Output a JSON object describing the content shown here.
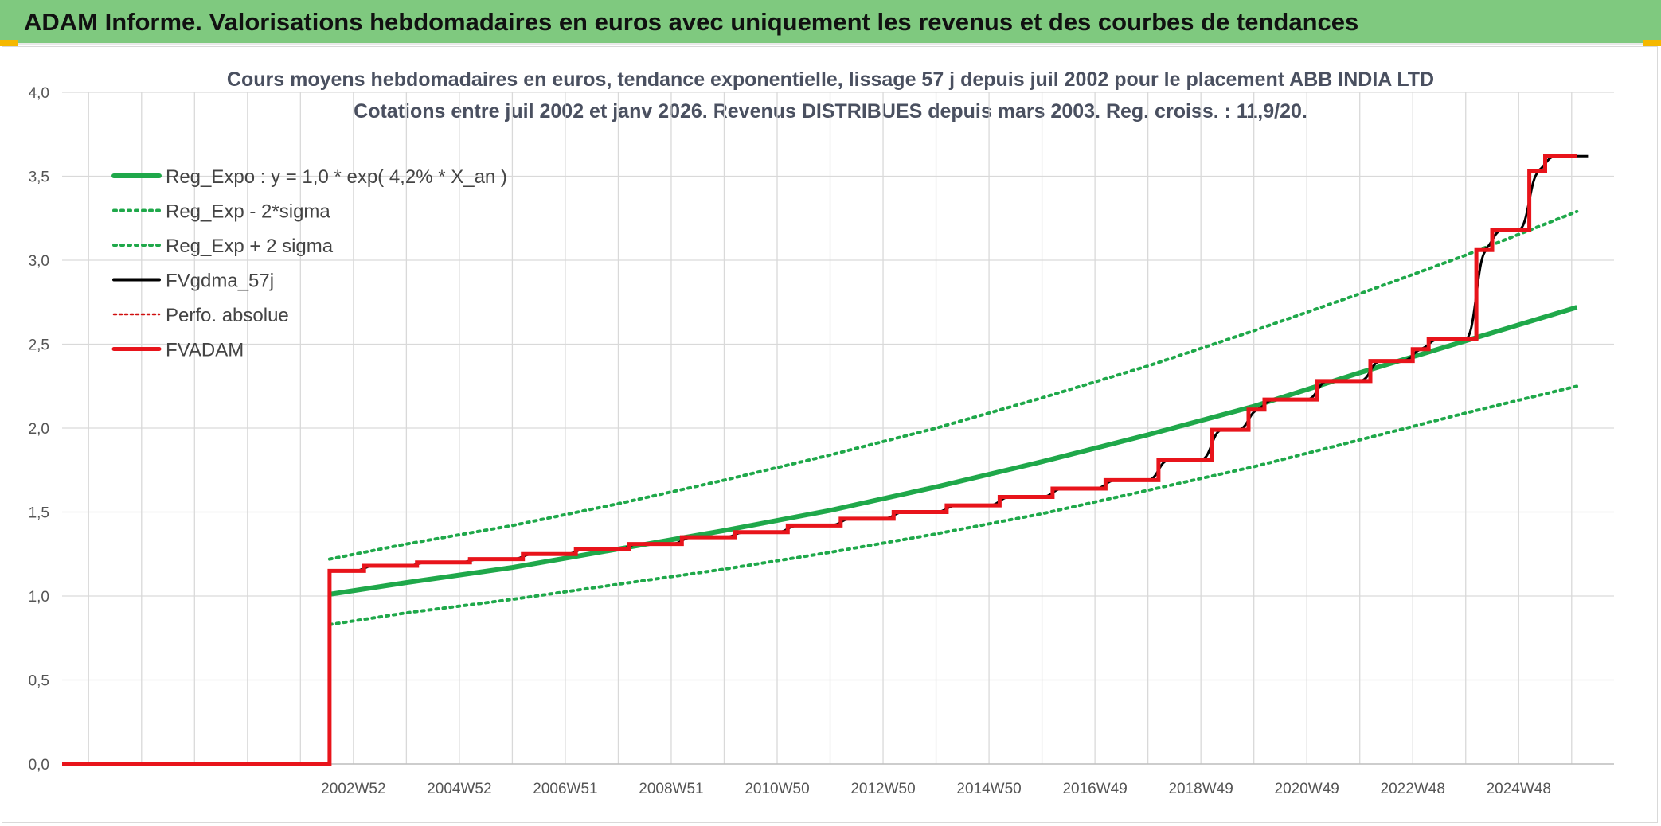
{
  "header": {
    "title": "ADAM Informe. Valorisations hebdomadaires en euros avec uniquement les revenus et des courbes de tendances"
  },
  "chart_data": {
    "type": "line",
    "title": "Cours moyens hebdomadaires en euros, tendance exponentielle, lissage 57 j depuis juil 2002 pour le placement ABB INDIA LTD",
    "subtitle": "Cotations entre juil 2002 et janv 2026. Revenus DISTRIBUES depuis mars 2003. Reg. croiss. : 11,9/20.",
    "xlabel": "",
    "ylabel": "",
    "x_ticks": [
      "2002W52",
      "2004W52",
      "2006W51",
      "2008W51",
      "2010W50",
      "2012W50",
      "2014W50",
      "2016W49",
      "2018W49",
      "2020W49",
      "2022W48",
      "2024W48"
    ],
    "x_tick_years": [
      2003.0,
      2005.0,
      2007.0,
      2009.0,
      2011.0,
      2013.0,
      2015.0,
      2017.0,
      2019.0,
      2021.0,
      2023.0,
      2025.0
    ],
    "x_range": [
      1997.5,
      2026.8
    ],
    "y_ticks": [
      "0,0",
      "0,5",
      "1,0",
      "1,5",
      "2,0",
      "2,5",
      "3,0",
      "3,5",
      "4,0"
    ],
    "ylim": [
      0,
      4.0
    ],
    "grid": true,
    "legend_position": "top-left",
    "colors": {
      "reg_expo": "#1fa84a",
      "sigma": "#1fa84a",
      "fvgdma": "#000000",
      "perfo": "#d01010",
      "fvadam": "#e8141b",
      "grid": "#d9d9d9"
    },
    "legend": [
      {
        "label": "Reg_Expo : y = 1,0 * exp( 4,2% *  X_an )",
        "key": "reg_expo"
      },
      {
        "label": "Reg_Exp - 2*sigma",
        "key": "reg_minus"
      },
      {
        "label": "Reg_Exp + 2 sigma",
        "key": "reg_plus"
      },
      {
        "label": "FVgdma_57j",
        "key": "fvgdma"
      },
      {
        "label": "Perfo. absolue",
        "key": "perfo"
      },
      {
        "label": "FVADAM",
        "key": "fvadam"
      }
    ],
    "series": [
      {
        "name": "Reg_Expo : y = 1,0 * exp( 4,2% *  X_an )",
        "key": "reg_expo",
        "x": [
          2002.55,
          2004,
          2006,
          2008,
          2010,
          2012,
          2014,
          2016,
          2018,
          2020,
          2022,
          2024,
          2026.1
        ],
        "y": [
          1.01,
          1.08,
          1.17,
          1.28,
          1.39,
          1.51,
          1.65,
          1.8,
          1.96,
          2.13,
          2.33,
          2.52,
          2.72
        ]
      },
      {
        "name": "Reg_Exp - 2*sigma",
        "key": "reg_minus",
        "x": [
          2002.55,
          2004,
          2006,
          2008,
          2010,
          2012,
          2014,
          2016,
          2018,
          2020,
          2022,
          2024,
          2026.1
        ],
        "y": [
          0.83,
          0.9,
          0.98,
          1.07,
          1.16,
          1.26,
          1.37,
          1.49,
          1.63,
          1.77,
          1.93,
          2.09,
          2.25
        ]
      },
      {
        "name": "Reg_Exp + 2 sigma",
        "key": "reg_plus",
        "x": [
          2002.55,
          2004,
          2006,
          2008,
          2010,
          2012,
          2014,
          2016,
          2018,
          2020,
          2022,
          2024,
          2026.1
        ],
        "y": [
          1.22,
          1.31,
          1.42,
          1.55,
          1.69,
          1.84,
          2.0,
          2.18,
          2.37,
          2.58,
          2.8,
          3.03,
          3.29
        ]
      },
      {
        "name": "FVADAM",
        "key": "fvadam",
        "step": true,
        "x": [
          1997.5,
          2002.55,
          2003.2,
          2004.2,
          2005.2,
          2006.2,
          2007.2,
          2008.2,
          2009.2,
          2010.2,
          2011.2,
          2012.2,
          2013.2,
          2014.2,
          2015.2,
          2016.2,
          2017.2,
          2018.2,
          2019.2,
          2019.9,
          2020.2,
          2021.2,
          2022.2,
          2023.0,
          2023.3,
          2023.6,
          2024.2,
          2024.5,
          2025.2,
          2025.5,
          2026.1
        ],
        "y": [
          0.0,
          1.15,
          1.18,
          1.2,
          1.22,
          1.25,
          1.28,
          1.31,
          1.35,
          1.38,
          1.42,
          1.46,
          1.5,
          1.54,
          1.59,
          1.64,
          1.69,
          1.81,
          1.99,
          2.11,
          2.17,
          2.28,
          2.4,
          2.47,
          2.53,
          2.53,
          3.06,
          3.18,
          3.53,
          3.62,
          3.62
        ]
      }
    ]
  }
}
